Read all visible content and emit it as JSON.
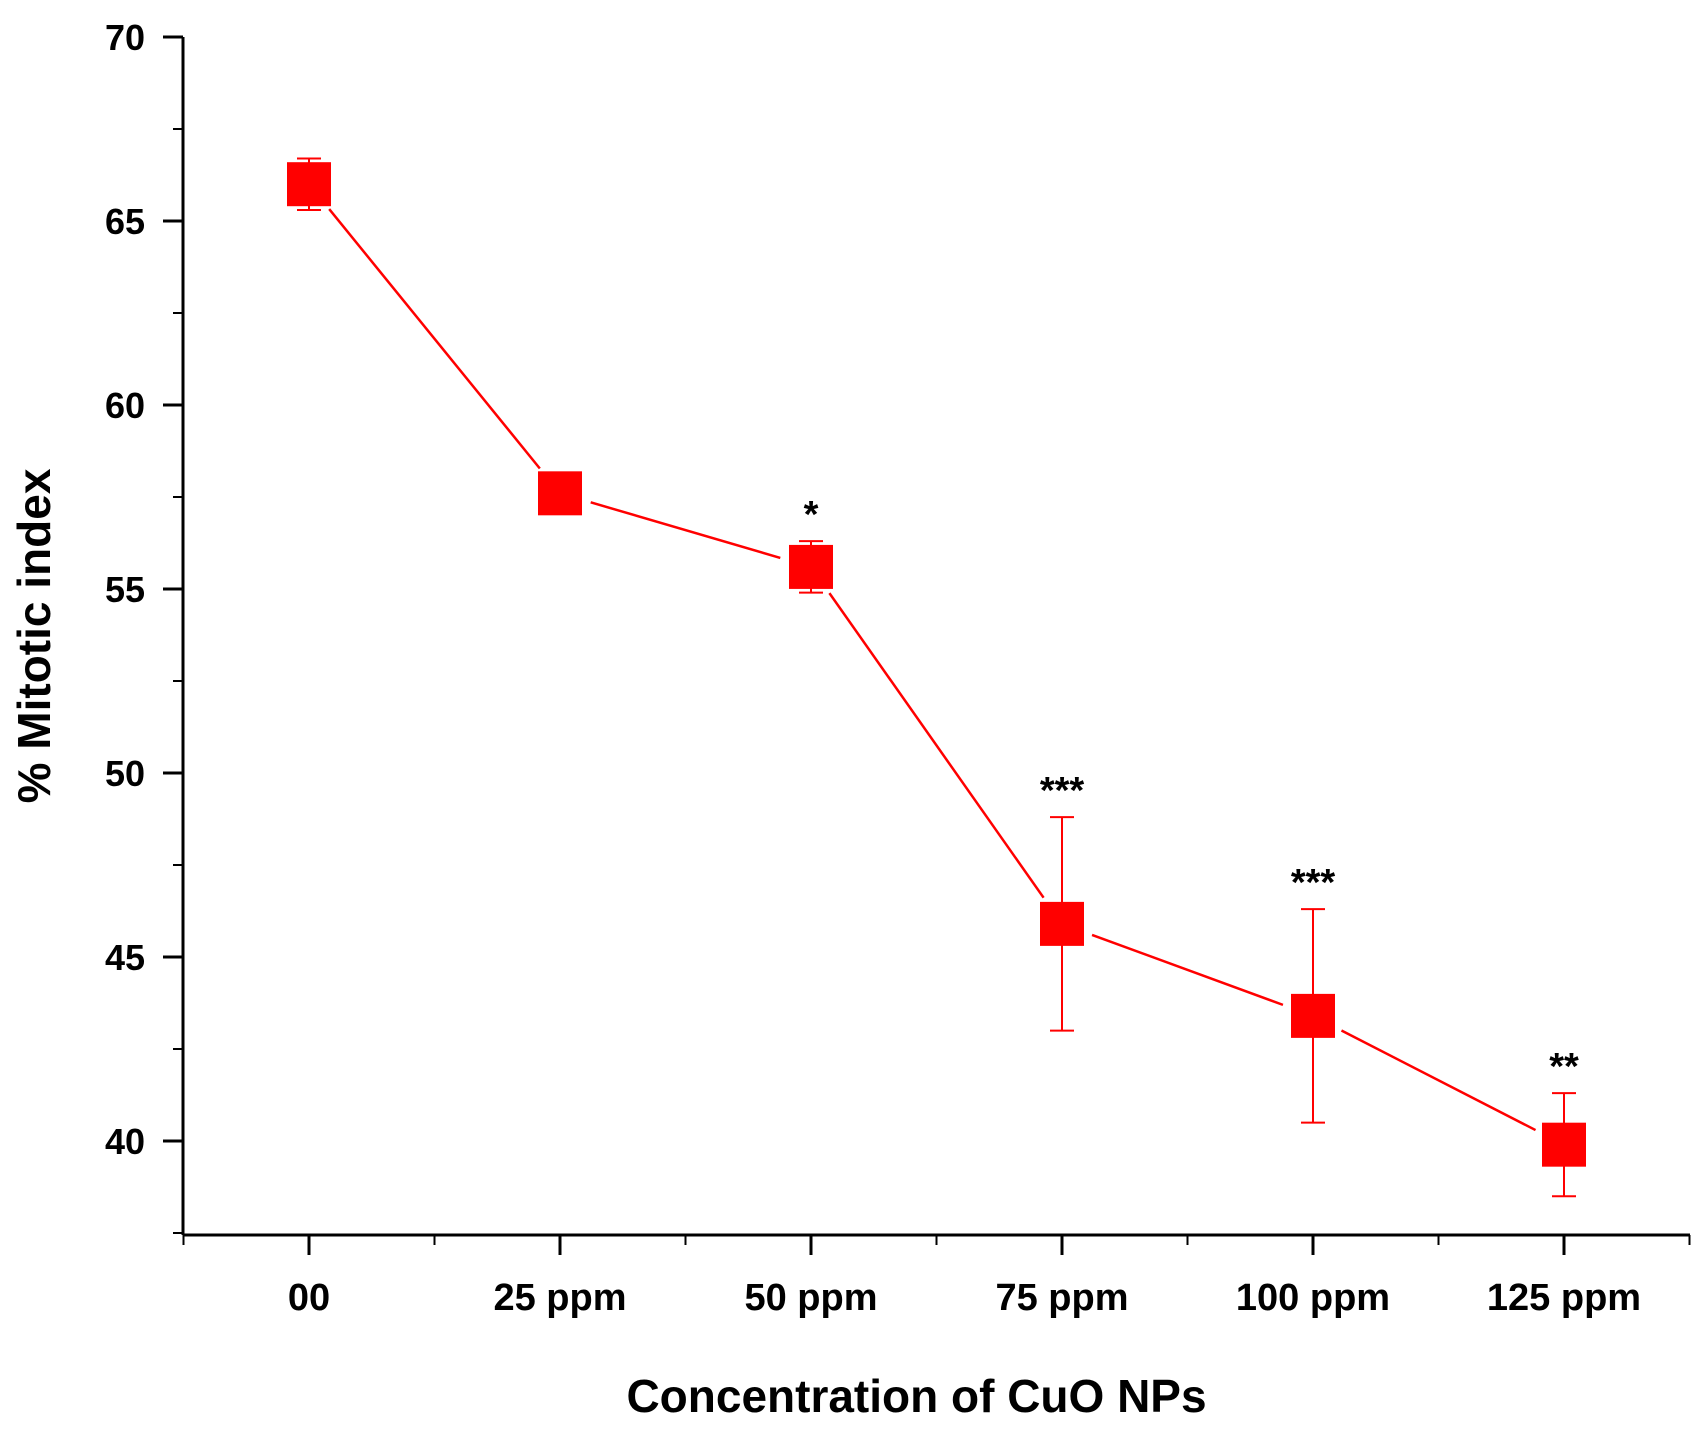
{
  "chart_data": {
    "type": "line",
    "title": "",
    "xlabel": "Concentration of CuO NPs",
    "ylabel": "% Mitotic index",
    "categories": [
      "00",
      "25 ppm",
      "50 ppm",
      "75 ppm",
      "100 ppm",
      "125 ppm"
    ],
    "series": [
      {
        "name": "% Mitotic index",
        "values": [
          66.0,
          57.6,
          55.6,
          45.9,
          43.4,
          39.9
        ],
        "error": [
          0.7,
          0.0,
          0.7,
          2.9,
          2.9,
          1.4
        ]
      }
    ],
    "annotations": [
      "",
      "",
      "*",
      "***",
      "***",
      "**"
    ],
    "yticks": [
      40,
      45,
      50,
      55,
      60,
      65,
      70
    ],
    "ylim": [
      37.5,
      70
    ],
    "grid": false,
    "legend": "none",
    "colors": {
      "series": "#ff0000",
      "axis": "#000000",
      "text": "#000000"
    }
  }
}
